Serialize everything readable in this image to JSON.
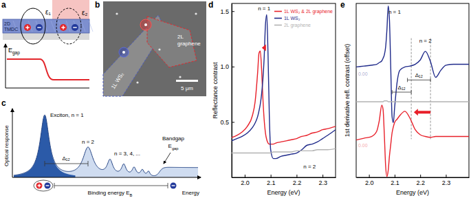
{
  "panels": {
    "a": {
      "label": "a",
      "eps1": "ε₁",
      "eps2": "ε₂",
      "material": [
        "2D",
        "TMDC"
      ],
      "gap": {
        "main": "E",
        "sub": "gap"
      }
    },
    "b": {
      "label": "b",
      "flake": "1L WS₂",
      "graphene": [
        "2L",
        "graphene"
      ],
      "scale_bar": "5 μm"
    },
    "c": {
      "label": "c",
      "peak1": "Exciton, n = 1",
      "peak2": "n = 2",
      "peaks_higher": "n = 3, 4, ...",
      "bandgap": "Bandgap",
      "gap": {
        "main": "E",
        "sub": "gap"
      },
      "y_label": "Optical response",
      "x_label": "Energy",
      "spacing": "Δ₁₂",
      "binding": {
        "main": "Binding energy E",
        "sub": "B"
      }
    }
  },
  "chart_data": [
    {
      "type": "line",
      "title": "d",
      "x_label": "Energy (eV)",
      "y_label": "Reflectance contrast",
      "xlim": [
        1.95,
        2.35
      ],
      "ylim": [
        0,
        1.57
      ],
      "xticks": [
        {
          "value": 2,
          "label": "2.0"
        },
        2.1,
        2.2,
        2.3
      ],
      "yticks": [
        0.5,
        {
          "value": 1,
          "label": "1.0"
        },
        1.5
      ],
      "legend": "top-right",
      "x": [
        1.95,
        1.97,
        1.99,
        2.01,
        2.03,
        2.04,
        2.05,
        2.055,
        2.06,
        2.065,
        2.07,
        2.075,
        2.08,
        2.085,
        2.09,
        2.095,
        2.1,
        2.11,
        2.12,
        2.14,
        2.16,
        2.18,
        2.2,
        2.22,
        2.24,
        2.26,
        2.28,
        2.3,
        2.32,
        2.35
      ],
      "series": [
        {
          "name": "1L WS₂ & 2L graphene",
          "color": "#e8202a",
          "values": [
            0.36,
            0.38,
            0.41,
            0.46,
            0.56,
            0.68,
            0.95,
            1.12,
            1.14,
            0.98,
            0.72,
            0.52,
            0.4,
            0.34,
            0.31,
            0.3,
            0.3,
            0.3,
            0.31,
            0.32,
            0.33,
            0.34,
            0.35,
            0.37,
            0.38,
            0.4,
            0.41,
            0.43,
            0.44,
            0.46
          ]
        },
        {
          "name": "1L WS₂",
          "color": "#1f2a8a",
          "values": [
            0.33,
            0.35,
            0.37,
            0.4,
            0.45,
            0.49,
            0.55,
            0.6,
            0.66,
            0.75,
            0.88,
            1.08,
            1.38,
            1.47,
            1.1,
            0.55,
            0.25,
            0.17,
            0.17,
            0.19,
            0.2,
            0.21,
            0.22,
            0.25,
            0.29,
            0.3,
            0.32,
            0.35,
            0.38,
            0.43
          ]
        },
        {
          "name": "2L graphene",
          "color": "#b3b3b3",
          "values": [
            0.22,
            0.22,
            0.22,
            0.22,
            0.22,
            0.22,
            0.22,
            0.22,
            0.22,
            0.22,
            0.22,
            0.22,
            0.22,
            0.22,
            0.22,
            0.22,
            0.22,
            0.23,
            0.23,
            0.23,
            0.23,
            0.23,
            0.24,
            0.24,
            0.24,
            0.24,
            0.25,
            0.25,
            0.25,
            0.26
          ]
        }
      ],
      "annotations": [
        {
          "text": "n = 1",
          "x": 2.075,
          "y": 1.51
        },
        {
          "text": "n = 2",
          "x": 2.25,
          "y": 0.08
        }
      ],
      "arrows": [
        {
          "x": [
            2.082,
            2.066
          ],
          "y": 1.17,
          "color": "#e8202a"
        }
      ]
    },
    {
      "type": "line",
      "title": "e",
      "x_label": "Energy (eV)",
      "y_label": "1st derivative refl. contrast (offset)",
      "xlim": [
        1.95,
        2.39
      ],
      "ylim": [
        -1,
        1
      ],
      "tick_labels": "x",
      "xticks": [
        {
          "value": 2,
          "label": "2.0"
        },
        2.1,
        2.2,
        2.3
      ],
      "x": [
        1.95,
        1.98,
        2.01,
        2.03,
        2.04,
        2.05,
        2.055,
        2.06,
        2.065,
        2.07,
        2.075,
        2.08,
        2.085,
        2.09,
        2.095,
        2.1,
        2.11,
        2.12,
        2.14,
        2.16,
        2.18,
        2.2,
        2.22,
        2.24,
        2.26,
        2.28,
        2.3,
        2.33,
        2.36,
        2.39
      ],
      "series": [
        {
          "color": "#1f2a8a",
          "offset": 0.25,
          "baseline": {
            "value": 0,
            "label": "0.00"
          },
          "values": [
            0.02,
            0.03,
            0.04,
            0.05,
            0.07,
            0.09,
            0.12,
            0.16,
            0.25,
            0.45,
            0.72,
            0.55,
            0,
            -0.55,
            -0.62,
            -0.45,
            -0.15,
            -0.02,
            0.02,
            0.03,
            0.05,
            0.1,
            0.2,
            0.08,
            -0.1,
            -0.02,
            0.04,
            0.05,
            0.05,
            0.05
          ]
        },
        {
          "color": "#b3b3b3",
          "offset": -0.13,
          "values": [
            0,
            0,
            0,
            0,
            0,
            0,
            0,
            0.01,
            0.01,
            0.01,
            0,
            0,
            0,
            0,
            0,
            0,
            0,
            0,
            0,
            0,
            0,
            0,
            0,
            0,
            0,
            0,
            0,
            0,
            0,
            0
          ]
        },
        {
          "color": "#e8202a",
          "offset": -0.57,
          "baseline": {
            "value": 0,
            "label": "0.00"
          },
          "values": [
            0,
            0.02,
            0.04,
            0.1,
            0.22,
            0.4,
            0.35,
            0.05,
            -0.3,
            -0.42,
            -0.35,
            -0.18,
            -0.05,
            0.08,
            0.15,
            0.2,
            0.24,
            0.28,
            0.33,
            0.25,
            0.12,
            0.06,
            0.04,
            0.03,
            0.04,
            0.04,
            0.04,
            0.04,
            0.04,
            0.04
          ]
        }
      ],
      "annotations": [
        {
          "text": "n = 1",
          "x": 2.1,
          "y": 0.88
        },
        {
          "text": "n = 2",
          "x": 2.22,
          "y": 0.55
        }
      ],
      "brackets": [
        {
          "label": "Δ₁₂",
          "x": [
            2.15,
            2.24
          ],
          "y": 0.12
        },
        {
          "label": "Δ₁₂",
          "x": [
            2.09,
            2.165
          ],
          "y": -0.02
        }
      ],
      "vlines": [
        2.165,
        2.24
      ],
      "arrows": [
        {
          "x": [
            2.24,
            2.175
          ],
          "y": -0.25,
          "color": "#e8202a"
        }
      ]
    }
  ]
}
